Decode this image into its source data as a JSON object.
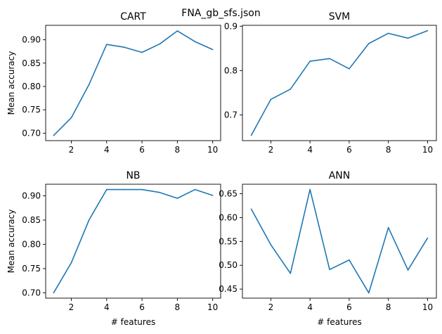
{
  "figure_title": "FNA_gb_sfs.json",
  "line_color": "#1f77b4",
  "chart_data": [
    {
      "type": "line",
      "title": "CART",
      "xlabel": "",
      "ylabel": "Mean accuracy",
      "x": [
        1,
        2,
        3,
        4,
        5,
        6,
        7,
        8,
        9,
        10
      ],
      "y": [
        0.695,
        0.733,
        0.804,
        0.89,
        0.884,
        0.873,
        0.891,
        0.919,
        0.896,
        0.879
      ],
      "xlim": [
        0.55,
        10.45
      ],
      "ylim": [
        0.684,
        0.931
      ],
      "xticks": [
        2,
        4,
        6,
        8,
        10
      ],
      "yticks": [
        0.7,
        0.75,
        0.8,
        0.85,
        0.9
      ],
      "ytick_labels": [
        "0.70",
        "0.75",
        "0.80",
        "0.85",
        "0.90"
      ],
      "grid": false
    },
    {
      "type": "line",
      "title": "SVM",
      "xlabel": "",
      "ylabel": "",
      "x": [
        1,
        2,
        3,
        4,
        5,
        6,
        7,
        8,
        9,
        10
      ],
      "y": [
        0.654,
        0.735,
        0.758,
        0.821,
        0.827,
        0.804,
        0.861,
        0.884,
        0.873,
        0.89
      ],
      "xlim": [
        0.55,
        10.45
      ],
      "ylim": [
        0.642,
        0.902
      ],
      "xticks": [
        2,
        4,
        6,
        8,
        10
      ],
      "yticks": [
        0.7,
        0.8,
        0.9
      ],
      "ytick_labels": [
        "0.7",
        "0.8",
        "0.9"
      ],
      "grid": false
    },
    {
      "type": "line",
      "title": "NB",
      "xlabel": "# features",
      "ylabel": "Mean accuracy",
      "x": [
        1,
        2,
        3,
        4,
        5,
        6,
        7,
        8,
        9,
        10
      ],
      "y": [
        0.7,
        0.762,
        0.85,
        0.913,
        0.913,
        0.913,
        0.907,
        0.895,
        0.913,
        0.901
      ],
      "xlim": [
        0.55,
        10.45
      ],
      "ylim": [
        0.689,
        0.924
      ],
      "xticks": [
        2,
        4,
        6,
        8,
        10
      ],
      "yticks": [
        0.7,
        0.75,
        0.8,
        0.85,
        0.9
      ],
      "ytick_labels": [
        "0.70",
        "0.75",
        "0.80",
        "0.85",
        "0.90"
      ],
      "grid": false
    },
    {
      "type": "line",
      "title": "ANN",
      "xlabel": "# features",
      "ylabel": "",
      "x": [
        1,
        2,
        3,
        4,
        5,
        6,
        7,
        8,
        9,
        10
      ],
      "y": [
        0.618,
        0.543,
        0.483,
        0.659,
        0.491,
        0.511,
        0.442,
        0.579,
        0.49,
        0.557
      ],
      "xlim": [
        0.55,
        10.45
      ],
      "ylim": [
        0.431,
        0.67
      ],
      "xticks": [
        2,
        4,
        6,
        8,
        10
      ],
      "yticks": [
        0.45,
        0.5,
        0.55,
        0.6,
        0.65
      ],
      "ytick_labels": [
        "0.45",
        "0.50",
        "0.55",
        "0.60",
        "0.65"
      ],
      "grid": false
    }
  ]
}
